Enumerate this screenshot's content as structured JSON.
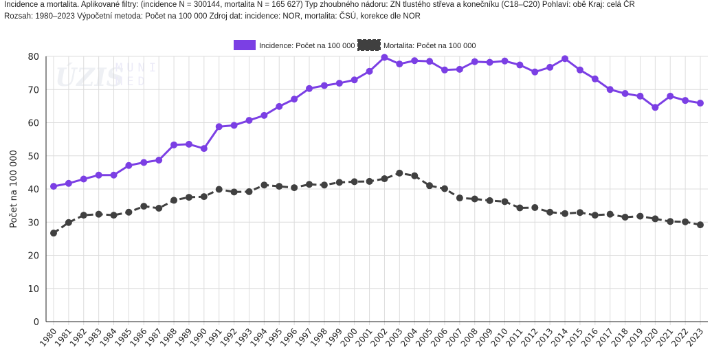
{
  "header": {
    "line1": "Incidence a mortalita. Aplikované filtry: (incidence N = 300144, mortalita N = 165 627) Typ zhoubného nádoru: ZN tlustého střeva a konečníku (C18–C20) Pohlaví: obě Kraj: celá ČR",
    "line2": "Rozsah: 1980–2023 Výpočetní metoda: Počet na 100 000 Zdroj dat: incidence: NOR, mortalita: ČSÚ, korekce dle NOR"
  },
  "watermark": {
    "left": "ÚZIS",
    "right": "MUNI MED"
  },
  "chart_data": {
    "type": "line",
    "title": "",
    "xlabel": "",
    "ylabel": "Počet na 100 000",
    "ylim": [
      0,
      80
    ],
    "yticks": [
      0,
      10,
      20,
      30,
      40,
      50,
      60,
      70,
      80
    ],
    "grid": true,
    "legend_position": "top-center",
    "x": [
      "1980",
      "1981",
      "1982",
      "1983",
      "1984",
      "1985",
      "1986",
      "1987",
      "1988",
      "1989",
      "1990",
      "1991",
      "1992",
      "1993",
      "1994",
      "1995",
      "1996",
      "1997",
      "1998",
      "1999",
      "2000",
      "2001",
      "2002",
      "2003",
      "2004",
      "2005",
      "2006",
      "2007",
      "2008",
      "2009",
      "2010",
      "2011",
      "2012",
      "2013",
      "2014",
      "2015",
      "2016",
      "2017",
      "2018",
      "2019",
      "2020",
      "2021",
      "2022",
      "2023"
    ],
    "series": [
      {
        "name": "Incidence: Počet na 100 000",
        "color": "#7b3fe4",
        "dashed": false,
        "values": [
          40.8,
          41.7,
          43.0,
          44.2,
          44.2,
          47.1,
          48.0,
          48.7,
          53.3,
          53.5,
          52.2,
          58.8,
          59.2,
          60.7,
          62.2,
          64.9,
          67.1,
          70.3,
          71.2,
          71.9,
          72.9,
          75.5,
          79.7,
          77.7,
          78.7,
          78.5,
          75.9,
          76.1,
          78.4,
          78.2,
          78.6,
          77.4,
          75.3,
          76.7,
          79.3,
          75.9,
          73.2,
          70.0,
          68.8,
          68.0,
          64.6,
          68.0,
          66.7,
          65.9
        ]
      },
      {
        "name": "Mortalita: Počet na 100 000",
        "color": "#404040",
        "dashed": true,
        "values": [
          26.7,
          29.9,
          32.1,
          32.4,
          32.1,
          33.0,
          34.8,
          34.2,
          36.6,
          37.5,
          37.7,
          39.9,
          39.1,
          39.2,
          41.2,
          40.8,
          40.4,
          41.4,
          41.2,
          42.0,
          42.2,
          42.3,
          43.1,
          44.8,
          44.0,
          41.0,
          40.1,
          37.3,
          37.0,
          36.5,
          36.2,
          34.3,
          34.4,
          33.0,
          32.6,
          32.9,
          32.1,
          32.4,
          31.5,
          31.8,
          31.0,
          30.2,
          30.1,
          29.2
        ]
      }
    ]
  }
}
